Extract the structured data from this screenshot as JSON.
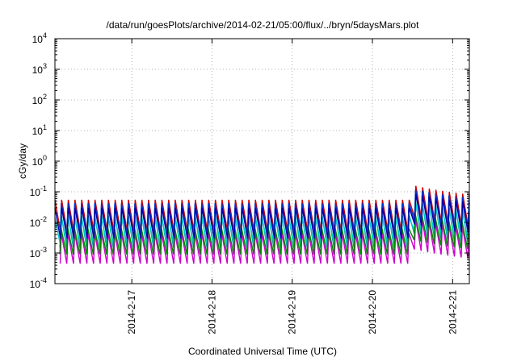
{
  "chart_data": {
    "type": "line",
    "title": "/data/run/goesPlots/archive/2014-02-21/05:00/flux/../bryn/5daysMars.plot",
    "xlabel": "Coordinated Universal Time (UTC)",
    "ylabel": "cGy/day",
    "yscale": "log",
    "ylim_exponents": [
      -4,
      4
    ],
    "y_ticks": [
      {
        "base": "10",
        "exp": "4"
      },
      {
        "base": "10",
        "exp": "3"
      },
      {
        "base": "10",
        "exp": "2"
      },
      {
        "base": "10",
        "exp": "1"
      },
      {
        "base": "10",
        "exp": "0"
      },
      {
        "base": "10",
        "exp": "-1"
      },
      {
        "base": "10",
        "exp": "-2"
      },
      {
        "base": "10",
        "exp": "-3"
      },
      {
        "base": "10",
        "exp": "-4"
      }
    ],
    "xlim": [
      "2014-02-16 01:00",
      "2014-02-21 05:00"
    ],
    "x_ticks": [
      "2014-2-17",
      "2014-2-18",
      "2014-2-19",
      "2014-2-20",
      "2014-2-21"
    ],
    "grid": true,
    "sawtooth_period_hours": 2.0,
    "series": [
      {
        "color": "#cc0000",
        "peak": 0.055,
        "trough": 0.005
      },
      {
        "color": "#0033cc",
        "peak": 0.042,
        "trough": 0.004
      },
      {
        "color": "#00a0a0",
        "peak": 0.02,
        "trough": 0.0015
      },
      {
        "color": "#00cccc",
        "peak": 0.014,
        "trough": 0.0018
      },
      {
        "color": "#cc00cc",
        "peak": 0.0045,
        "trough": 0.00045
      },
      {
        "color": "#008800",
        "peak": 0.0065,
        "trough": 0.0009
      },
      {
        "color": "#0000aa",
        "peak": 0.03,
        "trough": 0.003
      }
    ],
    "event": {
      "start": "2014-02-20 12:00",
      "factor": 3.0,
      "decay_hours": 12
    }
  }
}
